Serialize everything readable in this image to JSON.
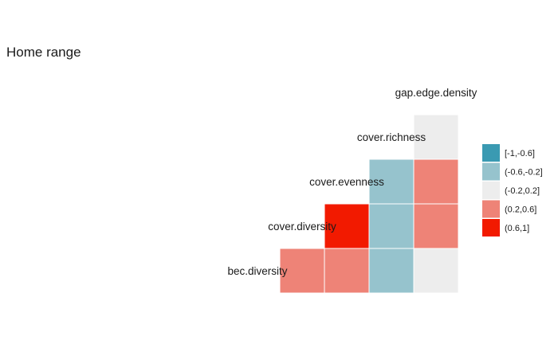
{
  "chart_data": {
    "type": "heatmap",
    "title": "Home range",
    "variables": [
      "bec.diversity",
      "cover.diversity",
      "cover.evenness",
      "cover.richness",
      "gap.edge.density"
    ],
    "row_labels": [
      "gap.edge.density",
      "cover.richness",
      "cover.evenness",
      "cover.diversity",
      "bec.diversity"
    ],
    "cells": [
      {
        "row": "cover.richness",
        "col": "gap.edge.density",
        "bin": "(-0.2,0.2]"
      },
      {
        "row": "cover.evenness",
        "col": "cover.richness",
        "bin": "(-0.6,-0.2]"
      },
      {
        "row": "cover.evenness",
        "col": "gap.edge.density",
        "bin": "(0.2,0.6]"
      },
      {
        "row": "cover.diversity",
        "col": "cover.evenness",
        "bin": "(0.6,1]"
      },
      {
        "row": "cover.diversity",
        "col": "cover.richness",
        "bin": "(-0.6,-0.2]"
      },
      {
        "row": "cover.diversity",
        "col": "gap.edge.density",
        "bin": "(0.2,0.6]"
      },
      {
        "row": "bec.diversity",
        "col": "cover.diversity",
        "bin": "(0.2,0.6]"
      },
      {
        "row": "bec.diversity",
        "col": "cover.evenness",
        "bin": "(0.2,0.6]"
      },
      {
        "row": "bec.diversity",
        "col": "cover.richness",
        "bin": "(-0.6,-0.2]"
      },
      {
        "row": "bec.diversity",
        "col": "gap.edge.density",
        "bin": "(-0.2,0.2]"
      }
    ],
    "legend": {
      "position": "right",
      "bins": [
        {
          "label": "[-1,-0.6]",
          "color": "#3A9AB2"
        },
        {
          "label": "(-0.6,-0.2]",
          "color": "#96C3CD"
        },
        {
          "label": "(-0.2,0.2]",
          "color": "#EDEDED"
        },
        {
          "label": "(0.2,0.6]",
          "color": "#EE8377"
        },
        {
          "label": "(0.6,1]",
          "color": "#F21A00"
        }
      ]
    },
    "grid": false
  }
}
